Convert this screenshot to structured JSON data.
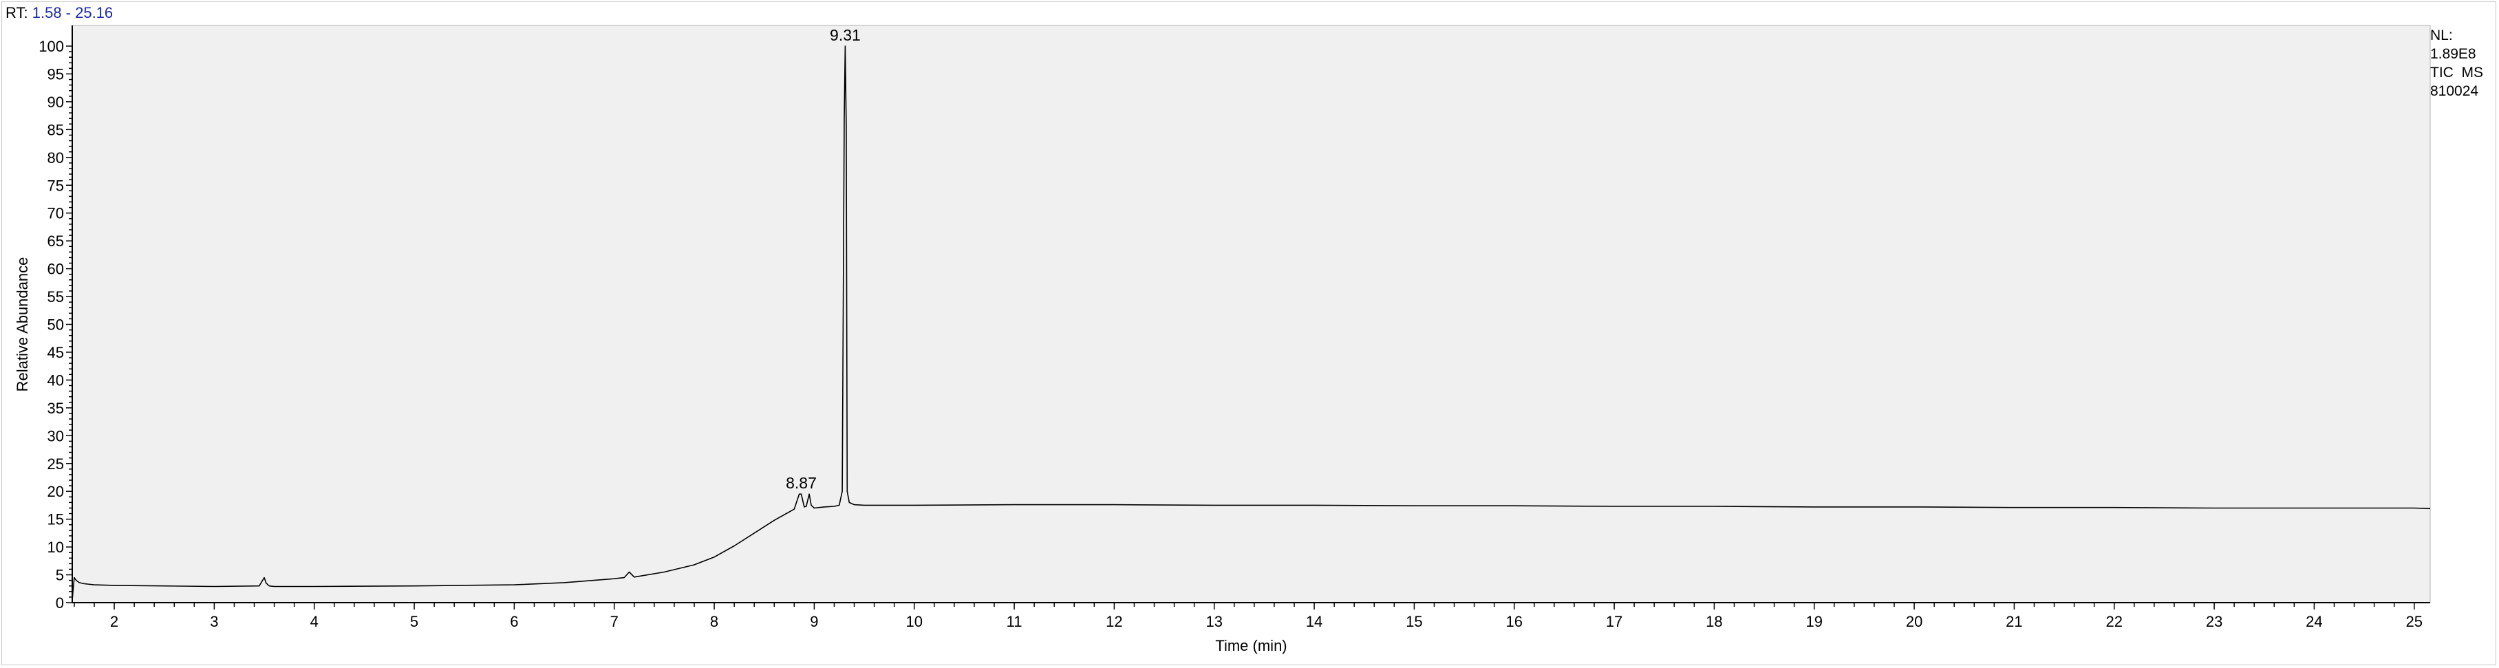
{
  "header": {
    "rt_prefix": "RT:",
    "rt_range": "1.58 - 25.16"
  },
  "info": {
    "nl_label": "NL:",
    "nl_value": "1.89E8",
    "trace_type": "TIC  MS",
    "file_name": "810024"
  },
  "colors": {
    "plot_background": "#f0f0f0",
    "trace": "#000000",
    "rt_range_text": "#1a2aa8"
  },
  "chart_data": {
    "type": "line",
    "xlabel": "Time (min)",
    "ylabel": "Relative Abundance",
    "xlim": [
      1.58,
      25.16
    ],
    "ylim": [
      0,
      100
    ],
    "x_ticks": [
      2,
      3,
      4,
      5,
      6,
      7,
      8,
      9,
      10,
      11,
      12,
      13,
      14,
      15,
      16,
      17,
      18,
      19,
      20,
      21,
      22,
      23,
      24,
      25
    ],
    "y_ticks": [
      0,
      5,
      10,
      15,
      20,
      25,
      30,
      35,
      40,
      45,
      50,
      55,
      60,
      65,
      70,
      75,
      80,
      85,
      90,
      95,
      100
    ],
    "peak_labels": [
      {
        "x": 8.87,
        "y": 19.5,
        "text": "8.87"
      },
      {
        "x": 9.31,
        "y": 100,
        "text": "9.31"
      }
    ],
    "series": [
      {
        "x": [
          1.58,
          1.6,
          1.62,
          1.65,
          1.7,
          1.8,
          2.0,
          2.5,
          3.0,
          3.45,
          3.5,
          3.52,
          3.55,
          3.6,
          4.0,
          5.0,
          6.0,
          6.5,
          7.0,
          7.1,
          7.15,
          7.2,
          7.5,
          7.8,
          8.0,
          8.2,
          8.4,
          8.6,
          8.8,
          8.85,
          8.87,
          8.9,
          8.92,
          8.95,
          8.97,
          9.0,
          9.05,
          9.1,
          9.2,
          9.25,
          9.28,
          9.3,
          9.31,
          9.32,
          9.33,
          9.35,
          9.4,
          9.5,
          10.0,
          11.0,
          12.0,
          13.0,
          14.0,
          15.0,
          16.0,
          17.0,
          18.0,
          19.0,
          20.0,
          21.0,
          22.0,
          23.0,
          24.0,
          25.0,
          25.16
        ],
        "y": [
          0.5,
          4.5,
          4.0,
          3.6,
          3.4,
          3.2,
          3.1,
          3.0,
          2.9,
          3.0,
          4.5,
          3.5,
          3.0,
          2.9,
          2.9,
          3.0,
          3.2,
          3.6,
          4.3,
          4.5,
          5.5,
          4.6,
          5.5,
          6.8,
          8.2,
          10.2,
          12.5,
          14.8,
          16.8,
          19.5,
          19.5,
          17.2,
          17.3,
          19.5,
          17.5,
          17.0,
          17.1,
          17.2,
          17.3,
          17.5,
          20.0,
          87.0,
          100.0,
          86.0,
          20.0,
          18.0,
          17.6,
          17.5,
          17.5,
          17.6,
          17.6,
          17.5,
          17.5,
          17.4,
          17.4,
          17.3,
          17.3,
          17.2,
          17.2,
          17.1,
          17.1,
          17.0,
          17.0,
          17.0,
          16.9
        ]
      }
    ]
  }
}
